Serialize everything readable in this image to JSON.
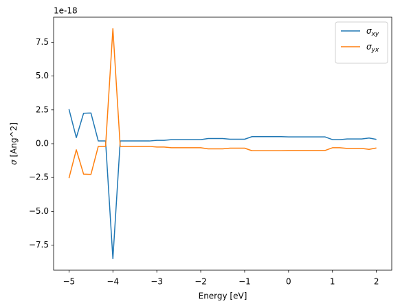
{
  "chart_data": {
    "type": "line",
    "y_offset_label": "1e-18",
    "xlabel": "Energy [eV]",
    "ylabel": "σ [Ang^2]",
    "x": [
      -5,
      -4.833,
      -4.667,
      -4.5,
      -4.333,
      -4.167,
      -4,
      -3.833,
      -3.667,
      -3.5,
      -3.333,
      -3.167,
      -3,
      -2.833,
      -2.667,
      -2.5,
      -2.333,
      -2.167,
      -2,
      -1.833,
      -1.667,
      -1.5,
      -1.333,
      -1.167,
      -1,
      -0.833,
      -0.667,
      -0.5,
      -0.333,
      -0.167,
      0,
      0.167,
      0.333,
      0.5,
      0.667,
      0.833,
      1,
      1.167,
      1.333,
      1.5,
      1.667,
      1.833,
      2
    ],
    "series": [
      {
        "name": "σxy",
        "color": "#1f77b4",
        "values": [
          2.55,
          0.45,
          2.25,
          2.27,
          0.2,
          0.2,
          -8.5,
          0.2,
          0.2,
          0.2,
          0.2,
          0.2,
          0.25,
          0.25,
          0.3,
          0.3,
          0.3,
          0.3,
          0.3,
          0.38,
          0.38,
          0.38,
          0.33,
          0.33,
          0.33,
          0.52,
          0.52,
          0.52,
          0.52,
          0.52,
          0.5,
          0.5,
          0.5,
          0.5,
          0.5,
          0.5,
          0.3,
          0.3,
          0.35,
          0.35,
          0.35,
          0.42,
          0.32
        ]
      },
      {
        "name": "σyx",
        "color": "#ff7f0e",
        "values": [
          -2.55,
          -0.45,
          -2.25,
          -2.27,
          -0.2,
          -0.2,
          8.5,
          -0.2,
          -0.2,
          -0.2,
          -0.2,
          -0.2,
          -0.25,
          -0.25,
          -0.3,
          -0.3,
          -0.3,
          -0.3,
          -0.3,
          -0.38,
          -0.38,
          -0.38,
          -0.33,
          -0.33,
          -0.33,
          -0.52,
          -0.52,
          -0.52,
          -0.52,
          -0.52,
          -0.5,
          -0.5,
          -0.5,
          -0.5,
          -0.5,
          -0.5,
          -0.3,
          -0.3,
          -0.35,
          -0.35,
          -0.35,
          -0.42,
          -0.32
        ]
      }
    ],
    "xlim": [
      -5.35,
      2.35
    ],
    "xticks": [
      {
        "value": -5,
        "label": "−5"
      },
      {
        "value": -4,
        "label": "−4"
      },
      {
        "value": -3,
        "label": "−3"
      },
      {
        "value": -2,
        "label": "−2"
      },
      {
        "value": -1,
        "label": "−1"
      },
      0,
      1,
      2
    ],
    "ylim": [
      -9.35,
      9.35
    ],
    "yticks": [
      {
        "value": -7.5,
        "label": "−7.5"
      },
      {
        "value": -5,
        "label": "−5.0"
      },
      {
        "value": -2.5,
        "label": "−2.5"
      },
      {
        "value": 0,
        "label": "0.0"
      },
      2.5,
      {
        "value": 5,
        "label": "5.0"
      },
      7.5
    ],
    "legend": "upper right",
    "grid": false
  }
}
